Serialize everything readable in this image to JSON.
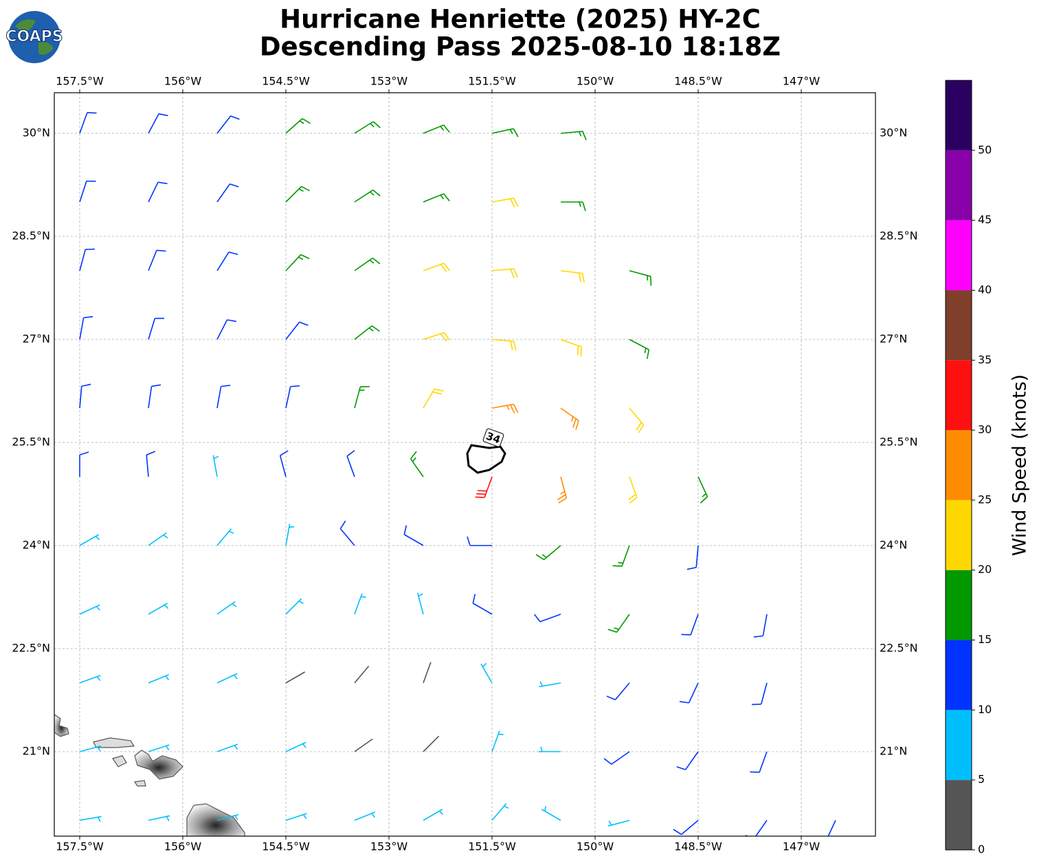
{
  "logo": {
    "text": "COAPS"
  },
  "chart_data": {
    "type": "wind-barbs",
    "title": [
      "Hurricane Henriette (2025) HY-2C",
      "Descending Pass 2025-08-10 18:18Z"
    ],
    "xlim": [
      -157.87,
      -145.92
    ],
    "ylim": [
      19.77,
      30.59
    ],
    "xticks": [
      {
        "value": -157.5,
        "label": "157.5°W"
      },
      {
        "value": -156,
        "label": "156°W"
      },
      {
        "value": -154.5,
        "label": "154.5°W"
      },
      {
        "value": -153,
        "label": "153°W"
      },
      {
        "value": -151.5,
        "label": "151.5°W"
      },
      {
        "value": -150,
        "label": "150°W"
      },
      {
        "value": -148.5,
        "label": "148.5°W"
      },
      {
        "value": -147,
        "label": "147°W"
      }
    ],
    "yticks": [
      {
        "value": 30,
        "label": "30°N"
      },
      {
        "value": 28.5,
        "label": "28.5°N"
      },
      {
        "value": 27,
        "label": "27°N"
      },
      {
        "value": 25.5,
        "label": "25.5°N"
      },
      {
        "value": 24,
        "label": "24°N"
      },
      {
        "value": 22.5,
        "label": "22.5°N"
      },
      {
        "value": 21,
        "label": "21°N"
      }
    ],
    "grid": true,
    "contour": {
      "level": 34
    },
    "colorbar": {
      "label": "Wind Speed (knots)",
      "clim": [
        0,
        55
      ],
      "ticks": [
        0,
        5,
        10,
        15,
        20,
        25,
        30,
        35,
        40,
        45,
        50
      ],
      "colors": [
        "#555555",
        "#00bfff",
        "#0033ff",
        "#009900",
        "#ffd700",
        "#ff8c00",
        "#ff1010",
        "#7f3f2a",
        "#ff00ff",
        "#8800aa",
        "#2a0060"
      ]
    },
    "barbs": [
      [
        -157.5,
        30,
        12,
        20
      ],
      [
        -156.5,
        30,
        12,
        28
      ],
      [
        -155.5,
        30,
        13,
        38
      ],
      [
        -154.5,
        30,
        16,
        48
      ],
      [
        -153.5,
        30,
        17,
        58
      ],
      [
        -152.5,
        30,
        18,
        68
      ],
      [
        -151.5,
        30,
        18,
        78
      ],
      [
        -150.5,
        30,
        17,
        85
      ],
      [
        -157.5,
        29,
        12,
        18
      ],
      [
        -156.5,
        29,
        12,
        26
      ],
      [
        -155.5,
        29,
        13,
        35
      ],
      [
        -154.5,
        29,
        15,
        45
      ],
      [
        -153.5,
        29,
        17,
        57
      ],
      [
        -152.5,
        29,
        19,
        68
      ],
      [
        -151.5,
        29,
        21,
        80
      ],
      [
        -150.5,
        29,
        19,
        90
      ],
      [
        -157.5,
        28,
        12,
        15
      ],
      [
        -156.5,
        28,
        13,
        22
      ],
      [
        -155.5,
        28,
        13,
        32
      ],
      [
        -154.5,
        28,
        15,
        43
      ],
      [
        -153.5,
        28,
        17,
        55
      ],
      [
        -152.5,
        28,
        20,
        70
      ],
      [
        -151.5,
        28,
        23,
        85
      ],
      [
        -150.5,
        28,
        22,
        97
      ],
      [
        -149.5,
        28,
        18,
        105
      ],
      [
        -157.5,
        27,
        13,
        10
      ],
      [
        -156.5,
        27,
        13,
        17
      ],
      [
        -155.5,
        27,
        13,
        27
      ],
      [
        -154.5,
        27,
        14,
        38
      ],
      [
        -153.5,
        27,
        17,
        52
      ],
      [
        -152.5,
        27,
        21,
        72
      ],
      [
        -151.5,
        27,
        23,
        95
      ],
      [
        -150.5,
        27,
        23,
        110
      ],
      [
        -149.5,
        27,
        19,
        118
      ],
      [
        -157.5,
        26,
        12,
        5
      ],
      [
        -156.5,
        26,
        13,
        8
      ],
      [
        -155.5,
        26,
        13,
        10
      ],
      [
        -154.5,
        26,
        14,
        12
      ],
      [
        -153.5,
        26,
        17,
        15
      ],
      [
        -152.5,
        26,
        21,
        30
      ],
      [
        -151.5,
        26,
        26,
        80
      ],
      [
        -150.5,
        26,
        25,
        125
      ],
      [
        -149.5,
        26,
        21,
        140
      ],
      [
        -157.5,
        25,
        10,
        0
      ],
      [
        -156.5,
        25,
        10,
        355
      ],
      [
        -155.5,
        25,
        9,
        350
      ],
      [
        -154.5,
        25,
        10,
        345
      ],
      [
        -153.5,
        25,
        12,
        340
      ],
      [
        -152.5,
        25,
        18,
        325
      ],
      [
        -151.5,
        25,
        30,
        200
      ],
      [
        -150.5,
        25,
        26,
        165
      ],
      [
        -149.5,
        25,
        21,
        160
      ],
      [
        -148.5,
        25,
        17,
        155
      ],
      [
        -157.5,
        24,
        8,
        60
      ],
      [
        -156.5,
        24,
        8,
        55
      ],
      [
        -155.5,
        24,
        8,
        40
      ],
      [
        -154.5,
        24,
        9,
        10
      ],
      [
        -153.5,
        24,
        10,
        320
      ],
      [
        -152.5,
        24,
        12,
        300
      ],
      [
        -151.5,
        24,
        13,
        270
      ],
      [
        -150.5,
        24,
        17,
        230
      ],
      [
        -149.5,
        24,
        16,
        200
      ],
      [
        -148.5,
        24,
        14,
        185
      ],
      [
        -157.5,
        23,
        7,
        65
      ],
      [
        -156.5,
        23,
        7,
        60
      ],
      [
        -155.5,
        23,
        7,
        55
      ],
      [
        -154.5,
        23,
        6,
        45
      ],
      [
        -153.5,
        23,
        7,
        20
      ],
      [
        -152.5,
        23,
        9,
        345
      ],
      [
        -151.5,
        23,
        10,
        300
      ],
      [
        -150.5,
        23,
        12,
        250
      ],
      [
        -149.5,
        23,
        15,
        215
      ],
      [
        -148.5,
        23,
        14,
        200
      ],
      [
        -147.5,
        23,
        13,
        190
      ],
      [
        -157.5,
        22,
        7,
        70
      ],
      [
        -156.5,
        22,
        7,
        68
      ],
      [
        -155.5,
        22,
        6,
        65
      ],
      [
        -154.5,
        22,
        3,
        60
      ],
      [
        -153.5,
        22,
        3,
        40
      ],
      [
        -152.5,
        22,
        3,
        20
      ],
      [
        -151.5,
        22,
        5,
        330
      ],
      [
        -150.5,
        22,
        8,
        260
      ],
      [
        -149.5,
        22,
        12,
        220
      ],
      [
        -148.5,
        22,
        13,
        205
      ],
      [
        -147.5,
        22,
        12,
        195
      ],
      [
        -157.5,
        21,
        8,
        75
      ],
      [
        -156.5,
        21,
        7,
        72
      ],
      [
        -155.5,
        21,
        7,
        70
      ],
      [
        -154.5,
        21,
        6,
        65
      ],
      [
        -153.5,
        21,
        4,
        55
      ],
      [
        -152.5,
        21,
        4,
        45
      ],
      [
        -151.5,
        21,
        6,
        20
      ],
      [
        -150.5,
        21,
        8,
        270
      ],
      [
        -149.5,
        21,
        10,
        235
      ],
      [
        -148.5,
        21,
        12,
        215
      ],
      [
        -147.5,
        21,
        13,
        200
      ],
      [
        -157.5,
        20,
        8,
        80
      ],
      [
        -156.5,
        20,
        8,
        78
      ],
      [
        -155.5,
        20,
        7,
        75
      ],
      [
        -154.5,
        20,
        7,
        72
      ],
      [
        -153.5,
        20,
        7,
        68
      ],
      [
        -152.5,
        20,
        6,
        60
      ],
      [
        -151.5,
        20,
        7,
        40
      ],
      [
        -150.5,
        20,
        8,
        300
      ],
      [
        -149.5,
        20,
        9,
        255
      ],
      [
        -148.5,
        20,
        10,
        230
      ],
      [
        -147.5,
        20,
        12,
        215
      ],
      [
        -146.5,
        20,
        14,
        205
      ]
    ]
  }
}
